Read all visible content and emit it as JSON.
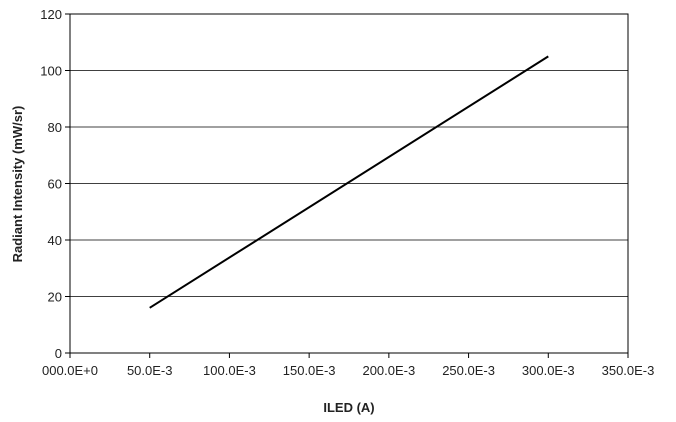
{
  "chart_data": {
    "type": "line",
    "title": "",
    "xlabel": "ILED (A)",
    "ylabel": "Radiant Intensity (mW/sr)",
    "xlim": [
      0,
      0.35
    ],
    "ylim": [
      0,
      120
    ],
    "x_ticks": [
      0,
      0.05,
      0.1,
      0.15,
      0.2,
      0.25,
      0.3,
      0.35
    ],
    "x_tick_labels": [
      "000.0E+0",
      "50.0E-3",
      "100.0E-3",
      "150.0E-3",
      "200.0E-3",
      "250.0E-3",
      "300.0E-3",
      "350.0E-3"
    ],
    "y_ticks": [
      0,
      20,
      40,
      60,
      80,
      100,
      120
    ],
    "y_tick_labels": [
      "0",
      "20",
      "40",
      "60",
      "80",
      "100",
      "120"
    ],
    "grid": "horizontal",
    "legend": "none",
    "series": [
      {
        "color": "#000000",
        "points": [
          [
            0.05,
            16
          ],
          [
            0.3,
            105
          ]
        ]
      }
    ]
  }
}
